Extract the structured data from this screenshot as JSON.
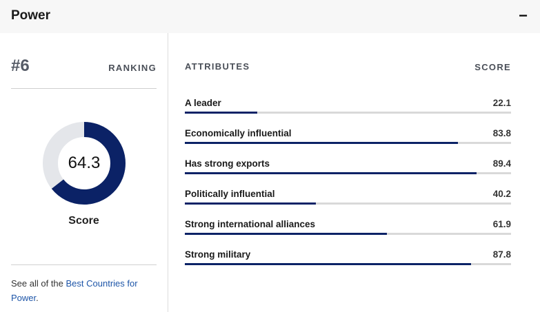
{
  "section": {
    "title": "Power",
    "collapse_symbol": "−"
  },
  "ranking": {
    "value": "#6",
    "label": "RANKING"
  },
  "score": {
    "value": "64.3",
    "label": "Score",
    "fraction": 0.643
  },
  "see_all": {
    "prefix": "See all of the ",
    "link_text": "Best Countries for Power",
    "suffix": "."
  },
  "attributes": {
    "header": "ATTRIBUTES",
    "score_header": "SCORE",
    "items": [
      {
        "name": "A leader",
        "score": "22.1"
      },
      {
        "name": "Economically influential",
        "score": "83.8"
      },
      {
        "name": "Has strong exports",
        "score": "89.4"
      },
      {
        "name": "Politically influential",
        "score": "40.2"
      },
      {
        "name": "Strong international alliances",
        "score": "61.9"
      },
      {
        "name": "Strong military",
        "score": "87.8"
      }
    ]
  },
  "colors": {
    "accent": "#0b2266",
    "track": "#d9d9d9",
    "donut_track": "#e4e6ea",
    "link": "#1d55a8"
  }
}
